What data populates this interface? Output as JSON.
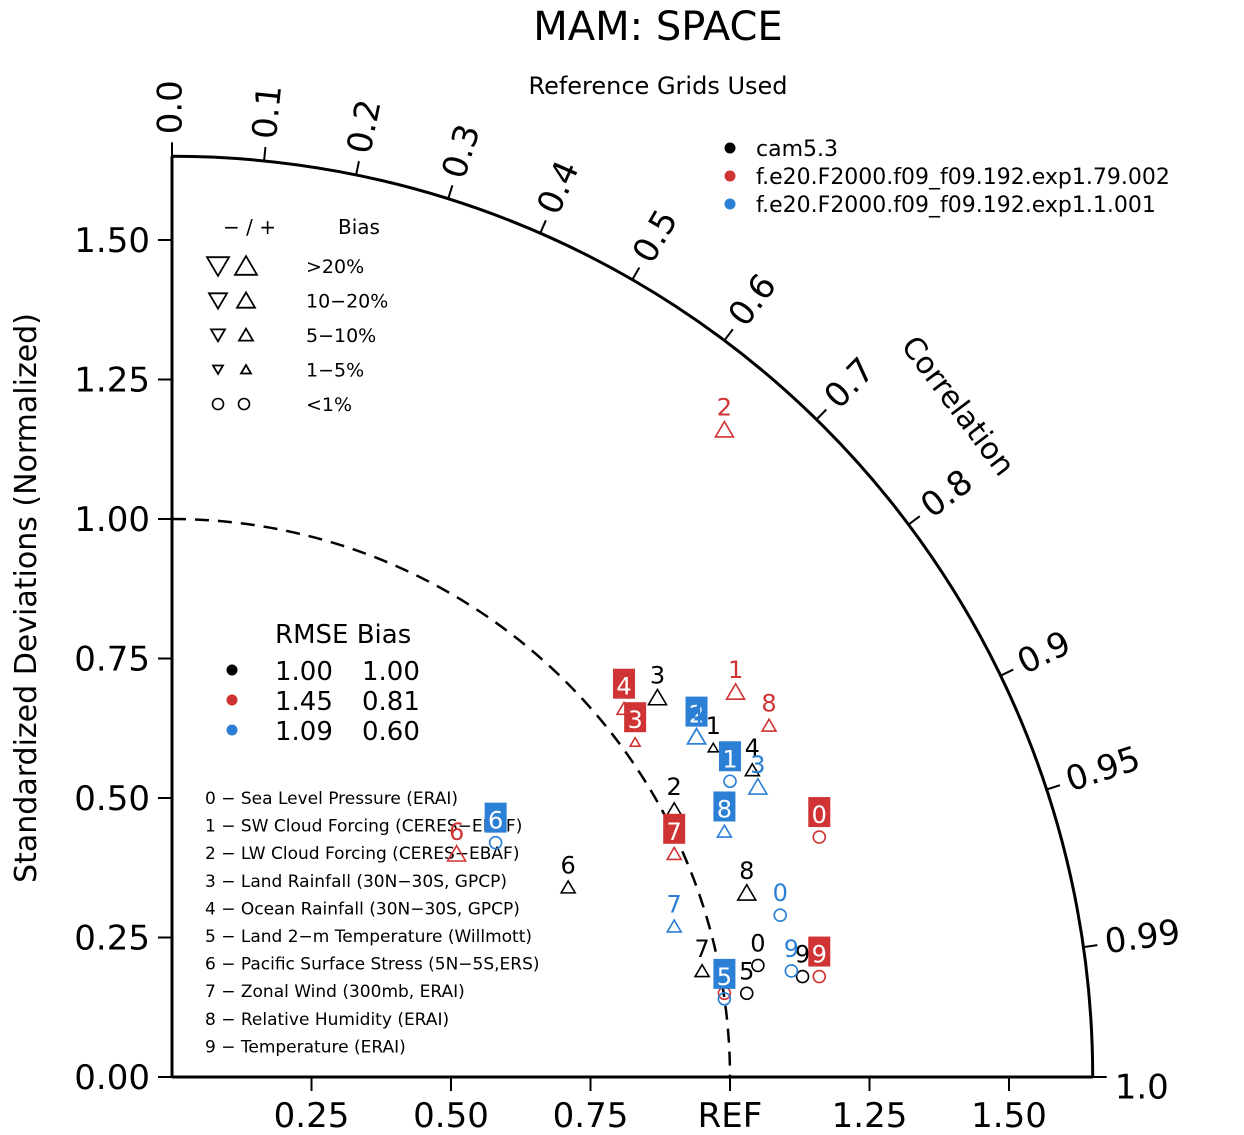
{
  "title": "MAM: SPACE",
  "subtitle": "Reference Grids Used",
  "ylabel": "Standardized Deviations (Normalized)",
  "correlation_label": "Correlation",
  "chart_data": {
    "type": "scatter",
    "title": "MAM: SPACE",
    "subtitle": "Reference Grids Used",
    "ylabel": "Standardized Deviations (Normalized)",
    "xlabel": "",
    "xlim": [
      0,
      1.65
    ],
    "ylim": [
      0,
      1.65
    ],
    "grid": false,
    "reference_label": "REF",
    "reference_arc": 1.0,
    "std_ticks_y": [
      {
        "v": 0.0,
        "label": "0.00"
      },
      {
        "v": 0.25,
        "label": "0.25"
      },
      {
        "v": 0.5,
        "label": "0.50"
      },
      {
        "v": 0.75,
        "label": "0.75"
      },
      {
        "v": 1.0,
        "label": "1.00"
      },
      {
        "v": 1.25,
        "label": "1.25"
      },
      {
        "v": 1.5,
        "label": "1.50"
      }
    ],
    "std_ticks_x": [
      {
        "v": 0.25,
        "label": "0.25"
      },
      {
        "v": 0.5,
        "label": "0.50"
      },
      {
        "v": 0.75,
        "label": "0.75"
      },
      {
        "v": 1.0,
        "label": "REF"
      },
      {
        "v": 1.25,
        "label": "1.25"
      },
      {
        "v": 1.5,
        "label": "1.50"
      }
    ],
    "correlation_ticks": [
      {
        "v": 0.0,
        "label": "0.0"
      },
      {
        "v": 0.1,
        "label": "0.1"
      },
      {
        "v": 0.2,
        "label": "0.2"
      },
      {
        "v": 0.3,
        "label": "0.3"
      },
      {
        "v": 0.4,
        "label": "0.4"
      },
      {
        "v": 0.5,
        "label": "0.5"
      },
      {
        "v": 0.6,
        "label": "0.6"
      },
      {
        "v": 0.7,
        "label": "0.7"
      },
      {
        "v": 0.8,
        "label": "0.8"
      },
      {
        "v": 0.9,
        "label": "0.9"
      },
      {
        "v": 0.95,
        "label": "0.95"
      },
      {
        "v": 0.99,
        "label": "0.99"
      },
      {
        "v": 1.0,
        "label": "1.0"
      }
    ],
    "series": [
      {
        "name": "cam5.3",
        "color": "#000000",
        "rmse": "1.00",
        "bias": "1.00",
        "points": [
          {
            "id": "0",
            "x": 1.05,
            "y": 0.2,
            "marker": "circle",
            "size": "m",
            "boxed": false
          },
          {
            "id": "1",
            "x": 0.97,
            "y": 0.59,
            "marker": "tri-up",
            "size": "s",
            "boxed": false
          },
          {
            "id": "2",
            "x": 0.9,
            "y": 0.48,
            "marker": "tri-up",
            "size": "m",
            "boxed": false
          },
          {
            "id": "3",
            "x": 0.87,
            "y": 0.68,
            "marker": "tri-up",
            "size": "l",
            "boxed": false
          },
          {
            "id": "4",
            "x": 1.04,
            "y": 0.55,
            "marker": "tri-up",
            "size": "m",
            "boxed": false
          },
          {
            "id": "5",
            "x": 1.03,
            "y": 0.15,
            "marker": "circle",
            "size": "m",
            "boxed": false
          },
          {
            "id": "6",
            "x": 0.71,
            "y": 0.34,
            "marker": "tri-up",
            "size": "m",
            "boxed": false
          },
          {
            "id": "7",
            "x": 0.95,
            "y": 0.19,
            "marker": "tri-up",
            "size": "m",
            "boxed": false
          },
          {
            "id": "8",
            "x": 1.03,
            "y": 0.33,
            "marker": "tri-up",
            "size": "l",
            "boxed": false
          },
          {
            "id": "9",
            "x": 1.13,
            "y": 0.18,
            "marker": "circle",
            "size": "m",
            "boxed": false
          }
        ]
      },
      {
        "name": "f.e20.F2000.f09_f09.192.exp1.79.002",
        "color": "#d03333",
        "rmse": "1.45",
        "bias": "0.81",
        "points": [
          {
            "id": "0",
            "x": 1.16,
            "y": 0.43,
            "marker": "circle",
            "size": "m",
            "boxed": true
          },
          {
            "id": "1",
            "x": 1.01,
            "y": 0.69,
            "marker": "tri-up",
            "size": "l",
            "boxed": false
          },
          {
            "id": "2",
            "x": 0.99,
            "y": 1.16,
            "marker": "tri-up",
            "size": "l",
            "boxed": false
          },
          {
            "id": "3",
            "x": 0.83,
            "y": 0.6,
            "marker": "tri-up",
            "size": "s",
            "boxed": true
          },
          {
            "id": "4",
            "x": 0.81,
            "y": 0.66,
            "marker": "tri-up",
            "size": "m",
            "boxed": true
          },
          {
            "id": "5",
            "x": 0.99,
            "y": 0.15,
            "marker": "circle",
            "size": "m",
            "boxed": false
          },
          {
            "id": "6",
            "x": 0.51,
            "y": 0.4,
            "marker": "tri-up",
            "size": "l",
            "boxed": false
          },
          {
            "id": "7",
            "x": 0.9,
            "y": 0.4,
            "marker": "tri-up",
            "size": "m",
            "boxed": true
          },
          {
            "id": "8",
            "x": 1.07,
            "y": 0.63,
            "marker": "tri-up",
            "size": "m",
            "boxed": false
          },
          {
            "id": "9",
            "x": 1.16,
            "y": 0.18,
            "marker": "circle",
            "size": "m",
            "boxed": true
          }
        ]
      },
      {
        "name": "f.e20.F2000.f09_f09.192.exp1.1.001",
        "color": "#2b7fd4",
        "rmse": "1.09",
        "bias": "0.60",
        "points": [
          {
            "id": "0",
            "x": 1.09,
            "y": 0.29,
            "marker": "circle",
            "size": "m",
            "boxed": false
          },
          {
            "id": "1",
            "x": 1.0,
            "y": 0.53,
            "marker": "circle",
            "size": "m",
            "boxed": true
          },
          {
            "id": "2",
            "x": 0.94,
            "y": 0.61,
            "marker": "tri-up",
            "size": "l",
            "boxed": true
          },
          {
            "id": "3",
            "x": 1.05,
            "y": 0.52,
            "marker": "tri-up",
            "size": "l",
            "boxed": false
          },
          {
            "id": "4",
            "x": 0.94,
            "y": 0.61,
            "marker": "tri-up",
            "size": "l",
            "boxed": false
          },
          {
            "id": "5",
            "x": 0.99,
            "y": 0.14,
            "marker": "circle",
            "size": "m",
            "boxed": true
          },
          {
            "id": "6",
            "x": 0.58,
            "y": 0.42,
            "marker": "circle",
            "size": "s",
            "boxed": true
          },
          {
            "id": "7",
            "x": 0.9,
            "y": 0.27,
            "marker": "tri-up",
            "size": "m",
            "boxed": false
          },
          {
            "id": "8",
            "x": 0.99,
            "y": 0.44,
            "marker": "tri-up",
            "size": "m",
            "boxed": true
          },
          {
            "id": "9",
            "x": 1.11,
            "y": 0.19,
            "marker": "circle",
            "size": "m",
            "boxed": false
          }
        ]
      }
    ]
  },
  "bias_legend": {
    "header_sign": "− / +",
    "header_bias": "Bias",
    "rows": [
      {
        "label": ">20%",
        "size": "xl"
      },
      {
        "label": "10−20%",
        "size": "l"
      },
      {
        "label": "5−10%",
        "size": "m"
      },
      {
        "label": "1−5%",
        "size": "s"
      },
      {
        "label": "<1%",
        "size": "circle"
      }
    ]
  },
  "stats_legend": {
    "header": "RMSE Bias"
  },
  "variables": [
    "0 − Sea Level Pressure (ERAI)",
    "1 − SW Cloud Forcing (CERES−EBAF)",
    "2 − LW Cloud Forcing (CERES−EBAF)",
    "3 − Land Rainfall (30N−30S, GPCP)",
    "4 − Ocean Rainfall (30N−30S, GPCP)",
    "5 − Land 2−m Temperature (Willmott)",
    "6 − Pacific Surface Stress (5N−5S,ERS)",
    "7 − Zonal Wind (300mb, ERAI)",
    "8 − Relative Humidity (ERAI)",
    "9 − Temperature (ERAI)"
  ]
}
